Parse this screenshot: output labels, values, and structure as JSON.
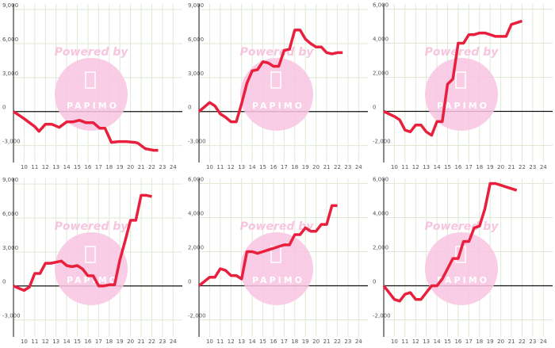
{
  "chart_data": [
    {
      "type": "line",
      "color": "#e8203e",
      "grid": true,
      "watermark": "Powered by",
      "logo": "PAPIMO",
      "xlim": [
        9,
        24.5
      ],
      "xticks": [
        10,
        11,
        12,
        13,
        14,
        15,
        16,
        17,
        18,
        19,
        20,
        21,
        22,
        23,
        24
      ],
      "ylim": [
        -4500,
        9500
      ],
      "yticks": [
        {
          "value": -3000,
          "label": "-3,000"
        },
        0,
        {
          "value": 3000,
          "label": "3,000"
        },
        {
          "value": 6000,
          "label": "6,000"
        },
        {
          "value": 9000,
          "label": "9,000"
        }
      ],
      "x": [
        9,
        10,
        11,
        11.4,
        12,
        12.6,
        13.3,
        14,
        14.6,
        15.2,
        15.8,
        16.5,
        17.1,
        17.6,
        18.2,
        18.9,
        19.6,
        20.4,
        20.7,
        21.4,
        22.2,
        22.6
      ],
      "values": [
        0,
        -630,
        -1330,
        -1750,
        -1120,
        -1120,
        -1400,
        -910,
        -910,
        -770,
        -980,
        -980,
        -1470,
        -1470,
        -2720,
        -2650,
        -2650,
        -2720,
        -2790,
        -3280,
        -3420,
        -3420
      ]
    },
    {
      "type": "line",
      "color": "#e8203e",
      "grid": true,
      "watermark": "Powered by",
      "logo": "PAPIMO",
      "xlim": [
        9,
        24.5
      ],
      "xticks": [
        10,
        11,
        12,
        13,
        14,
        15,
        16,
        17,
        18,
        19,
        20,
        21,
        22,
        23,
        24
      ],
      "ylim": [
        -4500,
        9500
      ],
      "yticks": [
        {
          "value": -3000,
          "label": "-3,000"
        },
        0,
        {
          "value": 3000,
          "label": "3,000"
        },
        {
          "value": 6000,
          "label": "6,000"
        },
        {
          "value": 9000,
          "label": "9,000"
        }
      ],
      "x": [
        9,
        10,
        10.5,
        11,
        11.5,
        12,
        12.5,
        13,
        13.5,
        14,
        14.5,
        15,
        15.5,
        16,
        16.5,
        17,
        17.5,
        18,
        18.5,
        19,
        19.5,
        20,
        20.5,
        21,
        21.5,
        22,
        22.5
      ],
      "values": [
        0,
        800,
        500,
        -200,
        -500,
        -900,
        -900,
        700,
        2500,
        3600,
        3700,
        4400,
        4300,
        4000,
        4000,
        5400,
        5500,
        7200,
        7200,
        6400,
        6000,
        5700,
        5700,
        5200,
        5100,
        5200,
        5200
      ]
    },
    {
      "type": "line",
      "color": "#e8203e",
      "grid": true,
      "watermark": "Powered by",
      "logo": "PAPIMO",
      "xlim": [
        9,
        24.5
      ],
      "xticks": [
        10,
        11,
        12,
        13,
        14,
        15,
        16,
        17,
        18,
        19,
        20,
        21,
        22,
        23,
        24
      ],
      "ylim": [
        -3000,
        6300
      ],
      "yticks": [
        {
          "value": -2000,
          "label": "-2,000"
        },
        0,
        {
          "value": 2000,
          "label": "2,000"
        },
        {
          "value": 4000,
          "label": "4,000"
        },
        {
          "value": 6000,
          "label": "6,000"
        }
      ],
      "x": [
        9,
        10,
        10.5,
        11,
        11.5,
        12,
        12.5,
        13,
        13.5,
        14,
        14.5,
        15,
        15.5,
        16,
        16.5,
        17,
        17.5,
        18,
        18.5,
        19,
        19.5,
        20,
        20.5,
        21,
        21.5,
        22
      ],
      "values": [
        0,
        -300,
        -500,
        -1100,
        -1200,
        -800,
        -800,
        -1200,
        -1400,
        -600,
        -600,
        1600,
        1900,
        4000,
        4000,
        4500,
        4500,
        4600,
        4600,
        4500,
        4400,
        4400,
        4400,
        5100,
        5200,
        5300
      ]
    },
    {
      "type": "line",
      "color": "#e8203e",
      "grid": true,
      "watermark": "Powered by",
      "logo": "PAPIMO",
      "xlim": [
        9,
        24.5
      ],
      "xticks": [
        10,
        11,
        12,
        13,
        14,
        15,
        16,
        17,
        18,
        19,
        20,
        21,
        22,
        23,
        24
      ],
      "ylim": [
        -4500,
        9500
      ],
      "yticks": [
        {
          "value": -3000,
          "label": "-3,000"
        },
        0,
        {
          "value": 3000,
          "label": "3,000"
        },
        {
          "value": 6000,
          "label": "6,000"
        },
        {
          "value": 9000,
          "label": "9,000"
        }
      ],
      "x": [
        9,
        9.5,
        10,
        10.5,
        11,
        11.5,
        12,
        12.5,
        13,
        13.5,
        14,
        14.5,
        15,
        15.5,
        16,
        16.5,
        17,
        17.5,
        18,
        18.5,
        19,
        19.5,
        20,
        20.5,
        21,
        21.5,
        22
      ],
      "values": [
        0,
        -200,
        -400,
        -100,
        1100,
        1100,
        2000,
        2000,
        2100,
        2200,
        1800,
        1700,
        1800,
        1500,
        900,
        900,
        0,
        0,
        100,
        100,
        2300,
        4000,
        5800,
        5800,
        8000,
        8000,
        7900
      ]
    },
    {
      "type": "line",
      "color": "#e8203e",
      "grid": true,
      "watermark": "Powered by",
      "logo": "PAPIMO",
      "xlim": [
        9,
        24.5
      ],
      "xticks": [
        10,
        11,
        12,
        13,
        14,
        15,
        16,
        17,
        18,
        19,
        20,
        21,
        22,
        23,
        24
      ],
      "ylim": [
        -3000,
        6300
      ],
      "yticks": [
        {
          "value": -2000,
          "label": "-2,000"
        },
        0,
        {
          "value": 2000,
          "label": "2,000"
        },
        {
          "value": 4000,
          "label": "4,000"
        },
        {
          "value": 6000,
          "label": "6,000"
        }
      ],
      "x": [
        9,
        10,
        10.5,
        11,
        11.5,
        12,
        12.5,
        13,
        13.5,
        14,
        14.5,
        15,
        15.5,
        16,
        16.5,
        17,
        17.5,
        18,
        18.5,
        19,
        19.5,
        20,
        20.5,
        21,
        21.5,
        22
      ],
      "values": [
        0,
        500,
        500,
        1000,
        900,
        600,
        600,
        400,
        2000,
        2000,
        1900,
        2000,
        2100,
        2200,
        2300,
        2400,
        2400,
        3000,
        3000,
        3400,
        3200,
        3200,
        3600,
        3600,
        4700,
        4700
      ]
    },
    {
      "type": "line",
      "color": "#e8203e",
      "grid": true,
      "watermark": "Powered by",
      "logo": "PAPIMO",
      "xlim": [
        9,
        24.5
      ],
      "xticks": [
        10,
        11,
        12,
        13,
        14,
        15,
        16,
        17,
        18,
        19,
        20,
        21,
        22,
        23,
        24
      ],
      "ylim": [
        -3000,
        6300
      ],
      "yticks": [
        {
          "value": -2000,
          "label": "-2,000"
        },
        0,
        {
          "value": 2000,
          "label": "2,000"
        },
        {
          "value": 4000,
          "label": "4,000"
        },
        {
          "value": 6000,
          "label": "6,000"
        }
      ],
      "x": [
        9,
        10,
        10.5,
        11,
        11.5,
        12,
        12.5,
        13,
        13.5,
        14,
        14.5,
        15,
        15.5,
        16,
        16.5,
        17,
        17.5,
        18,
        18.5,
        19,
        19.5,
        20,
        20.5,
        21,
        21.5
      ],
      "values": [
        0,
        -800,
        -900,
        -500,
        -400,
        -800,
        -800,
        -400,
        0,
        0,
        400,
        1000,
        1600,
        1600,
        2600,
        2600,
        3400,
        3500,
        4500,
        6000,
        6000,
        5900,
        5800,
        5700,
        5600
      ]
    }
  ]
}
